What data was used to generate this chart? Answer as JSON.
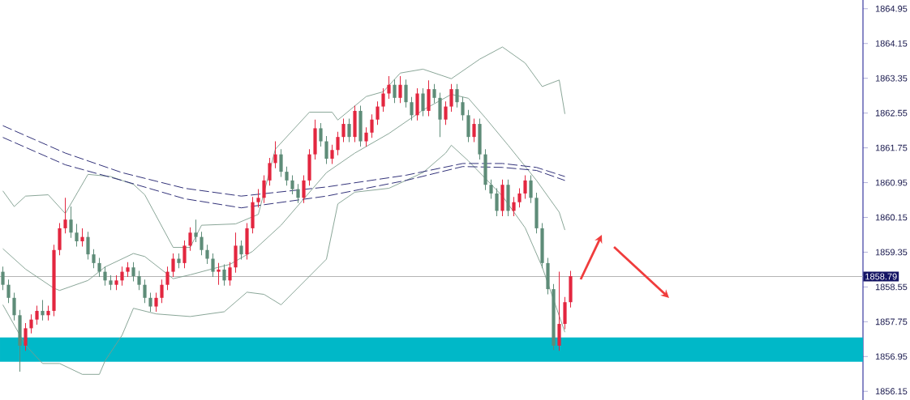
{
  "chart_data": {
    "type": "candlestick",
    "categories": [
      null,
      null,
      null,
      null,
      null,
      null,
      null,
      null,
      null,
      null,
      null,
      null,
      null,
      null,
      null,
      null,
      null,
      null,
      null,
      null,
      null,
      null,
      null,
      null,
      null,
      null,
      null,
      null,
      null,
      null,
      null,
      null,
      null,
      null,
      null,
      null,
      null,
      null,
      null,
      null,
      null,
      null,
      null,
      null,
      null,
      null,
      null,
      null,
      null,
      null,
      null,
      null,
      null,
      null,
      null,
      null,
      null,
      null,
      null,
      null,
      null,
      null,
      null,
      null,
      null,
      null,
      null,
      null,
      null,
      null,
      null,
      null,
      null,
      null,
      null,
      null,
      null,
      null,
      null,
      null,
      null,
      null,
      null,
      null,
      null,
      null,
      null,
      null,
      null,
      null,
      null,
      null,
      null,
      null,
      null,
      null,
      null,
      null,
      null,
      null,
      null,
      null,
      null,
      null,
      null,
      null,
      null,
      null,
      null,
      null,
      null,
      null,
      null,
      null,
      null,
      null,
      null,
      null,
      null,
      null,
      null,
      null,
      null,
      null,
      null,
      null,
      null,
      null,
      null,
      null,
      null,
      null,
      null,
      null,
      null,
      null,
      null,
      null,
      null,
      null,
      null,
      null,
      null,
      null,
      null,
      null,
      null,
      null,
      null,
      null,
      null,
      null
    ],
    "ohlc": [
      [
        1858.9,
        1859.02,
        1858.48,
        1858.6
      ],
      [
        1858.6,
        1858.72,
        1858.18,
        1858.3
      ],
      [
        1858.3,
        1858.42,
        1857.78,
        1857.9
      ],
      [
        1857.9,
        1858.02,
        1856.6,
        1857.2
      ],
      [
        1857.2,
        1857.72,
        1857.08,
        1857.6
      ],
      [
        1857.6,
        1857.92,
        1857.48,
        1857.8
      ],
      [
        1857.8,
        1858.12,
        1857.68,
        1858.0
      ],
      [
        1858.0,
        1858.25,
        1857.78,
        1857.9
      ],
      [
        1857.9,
        1858.12,
        1857.78,
        1858.0
      ],
      [
        1858.0,
        1859.52,
        1857.88,
        1859.4
      ],
      [
        1859.4,
        1860.02,
        1859.28,
        1859.9
      ],
      [
        1859.9,
        1860.6,
        1859.78,
        1860.1
      ],
      [
        1860.1,
        1860.4,
        1859.68,
        1859.8
      ],
      [
        1859.8,
        1860.0,
        1859.48,
        1859.6
      ],
      [
        1859.6,
        1859.9,
        1859.48,
        1859.7
      ],
      [
        1859.7,
        1859.82,
        1859.18,
        1859.3
      ],
      [
        1859.3,
        1859.42,
        1858.98,
        1859.1
      ],
      [
        1859.1,
        1859.22,
        1858.78,
        1858.9
      ],
      [
        1858.9,
        1859.02,
        1858.58,
        1858.7
      ],
      [
        1858.7,
        1858.82,
        1858.48,
        1858.6
      ],
      [
        1858.6,
        1858.82,
        1858.48,
        1858.7
      ],
      [
        1858.7,
        1859.02,
        1858.58,
        1858.9
      ],
      [
        1858.9,
        1859.12,
        1858.78,
        1859.0
      ],
      [
        1859.0,
        1859.12,
        1858.68,
        1858.8
      ],
      [
        1858.8,
        1858.92,
        1858.48,
        1858.6
      ],
      [
        1858.6,
        1858.72,
        1858.18,
        1858.3
      ],
      [
        1858.3,
        1858.42,
        1857.98,
        1858.1
      ],
      [
        1858.1,
        1858.42,
        1857.98,
        1858.3
      ],
      [
        1858.3,
        1858.72,
        1858.18,
        1858.6
      ],
      [
        1858.6,
        1859.02,
        1858.48,
        1858.9
      ],
      [
        1858.9,
        1859.32,
        1858.78,
        1859.2
      ],
      [
        1859.2,
        1859.32,
        1858.98,
        1859.1
      ],
      [
        1859.1,
        1859.62,
        1858.98,
        1859.5
      ],
      [
        1859.5,
        1859.92,
        1859.38,
        1859.8
      ],
      [
        1859.8,
        1860.1,
        1859.58,
        1859.7
      ],
      [
        1859.7,
        1859.82,
        1859.28,
        1859.4
      ],
      [
        1859.4,
        1859.52,
        1859.08,
        1859.2
      ],
      [
        1859.2,
        1859.32,
        1858.78,
        1858.9
      ],
      [
        1858.9,
        1859.1,
        1858.6,
        1858.95
      ],
      [
        1858.95,
        1859.07,
        1858.58,
        1858.7
      ],
      [
        1858.7,
        1859.12,
        1858.58,
        1859.0
      ],
      [
        1859.0,
        1859.8,
        1858.88,
        1859.5
      ],
      [
        1859.5,
        1859.62,
        1859.18,
        1859.3
      ],
      [
        1859.3,
        1860.02,
        1859.18,
        1859.9
      ],
      [
        1859.9,
        1860.62,
        1859.78,
        1860.5
      ],
      [
        1860.5,
        1860.8,
        1860.38,
        1860.6
      ],
      [
        1860.6,
        1861.12,
        1860.48,
        1861.0
      ],
      [
        1861.0,
        1861.52,
        1860.88,
        1861.4
      ],
      [
        1861.4,
        1861.9,
        1861.28,
        1861.6
      ],
      [
        1861.6,
        1861.72,
        1861.08,
        1861.2
      ],
      [
        1861.2,
        1861.32,
        1860.88,
        1861.0
      ],
      [
        1861.0,
        1861.12,
        1860.68,
        1860.8
      ],
      [
        1860.8,
        1860.92,
        1860.48,
        1860.6
      ],
      [
        1860.6,
        1861.12,
        1860.48,
        1861.0
      ],
      [
        1861.0,
        1861.72,
        1860.88,
        1861.6
      ],
      [
        1861.6,
        1862.4,
        1861.48,
        1862.2
      ],
      [
        1862.2,
        1862.32,
        1861.78,
        1861.9
      ],
      [
        1861.9,
        1862.02,
        1861.38,
        1861.5
      ],
      [
        1861.5,
        1861.82,
        1861.38,
        1861.7
      ],
      [
        1861.7,
        1862.12,
        1861.58,
        1862.0
      ],
      [
        1862.0,
        1862.42,
        1861.88,
        1862.3
      ],
      [
        1862.3,
        1862.42,
        1861.88,
        1862.0
      ],
      [
        1862.0,
        1862.72,
        1861.88,
        1862.6
      ],
      [
        1862.6,
        1862.72,
        1861.78,
        1861.9
      ],
      [
        1861.9,
        1862.22,
        1861.78,
        1862.1
      ],
      [
        1862.1,
        1862.52,
        1861.98,
        1862.4
      ],
      [
        1862.4,
        1862.82,
        1862.28,
        1862.7
      ],
      [
        1862.7,
        1863.12,
        1862.58,
        1863.0
      ],
      [
        1863.0,
        1863.4,
        1862.88,
        1863.2
      ],
      [
        1863.2,
        1863.32,
        1862.78,
        1862.9
      ],
      [
        1862.9,
        1863.4,
        1862.78,
        1863.2
      ],
      [
        1863.2,
        1863.32,
        1862.68,
        1862.8
      ],
      [
        1862.8,
        1862.92,
        1862.38,
        1862.5
      ],
      [
        1862.5,
        1863.12,
        1862.38,
        1863.0
      ],
      [
        1863.0,
        1863.12,
        1862.48,
        1862.6
      ],
      [
        1862.6,
        1863.3,
        1862.48,
        1863.1
      ],
      [
        1863.1,
        1863.22,
        1862.78,
        1862.9
      ],
      [
        1862.9,
        1863.02,
        1862.0,
        1862.4
      ],
      [
        1862.4,
        1862.82,
        1862.28,
        1862.7
      ],
      [
        1862.7,
        1863.22,
        1862.58,
        1863.1
      ],
      [
        1863.1,
        1863.22,
        1862.68,
        1862.8
      ],
      [
        1862.8,
        1862.92,
        1862.38,
        1862.5
      ],
      [
        1862.5,
        1862.62,
        1861.88,
        1862.0
      ],
      [
        1862.0,
        1862.42,
        1861.88,
        1862.3
      ],
      [
        1862.3,
        1862.42,
        1861.48,
        1861.6
      ],
      [
        1861.6,
        1861.72,
        1860.78,
        1860.9
      ],
      [
        1860.9,
        1861.02,
        1860.58,
        1860.7
      ],
      [
        1860.7,
        1860.82,
        1860.18,
        1860.3
      ],
      [
        1860.3,
        1861.02,
        1860.18,
        1860.9
      ],
      [
        1860.9,
        1861.02,
        1860.18,
        1860.3
      ],
      [
        1860.3,
        1860.62,
        1860.18,
        1860.5
      ],
      [
        1860.5,
        1860.82,
        1860.38,
        1860.7
      ],
      [
        1860.7,
        1861.12,
        1860.58,
        1861.0
      ],
      [
        1861.0,
        1861.12,
        1860.48,
        1860.6
      ],
      [
        1860.6,
        1860.72,
        1859.78,
        1859.9
      ],
      [
        1859.9,
        1860.02,
        1858.98,
        1859.1
      ],
      [
        1859.1,
        1859.22,
        1858.38,
        1858.5
      ],
      [
        1858.5,
        1858.62,
        1857.1,
        1857.2
      ],
      [
        1857.2,
        1858.9,
        1857.08,
        1857.7
      ],
      [
        1857.7,
        1858.32,
        1857.58,
        1858.2
      ],
      [
        1858.2,
        1858.92,
        1858.08,
        1858.8
      ],
      null,
      null,
      null,
      null,
      null,
      null,
      null,
      null,
      null,
      null,
      null,
      null,
      null,
      null,
      null,
      null,
      null,
      null,
      null,
      null,
      null,
      null,
      null,
      null,
      null,
      null,
      null,
      null,
      null,
      null,
      null,
      null,
      null,
      null,
      null,
      null,
      null,
      null,
      null,
      null,
      null,
      null,
      null,
      null,
      null,
      null,
      null,
      null,
      null,
      null,
      null
    ],
    "colors": [
      "#5e8c78",
      "#5e8c78",
      "#5e8c78",
      "#5e8c78",
      "#e3263f",
      "#e3263f",
      "#e3263f",
      "#5e8c78",
      "#e3263f",
      "#e3263f",
      "#e3263f",
      "#e3263f",
      "#5e8c78",
      "#5e8c78",
      "#e3263f",
      "#5e8c78",
      "#5e8c78",
      "#5e8c78",
      "#5e8c78",
      "#5e8c78",
      "#e3263f",
      "#e3263f",
      "#e3263f",
      "#5e8c78",
      "#5e8c78",
      "#5e8c78",
      "#5e8c78",
      "#e3263f",
      "#e3263f",
      "#e3263f",
      "#e3263f",
      "#5e8c78",
      "#e3263f",
      "#e3263f",
      "#5e8c78",
      "#5e8c78",
      "#5e8c78",
      "#5e8c78",
      "#e3263f",
      "#5e8c78",
      "#e3263f",
      "#e3263f",
      "#5e8c78",
      "#e3263f",
      "#e3263f",
      "#e3263f",
      "#e3263f",
      "#e3263f",
      "#e3263f",
      "#5e8c78",
      "#5e8c78",
      "#5e8c78",
      "#5e8c78",
      "#e3263f",
      "#e3263f",
      "#e3263f",
      "#5e8c78",
      "#5e8c78",
      "#e3263f",
      "#e3263f",
      "#e3263f",
      "#5e8c78",
      "#e3263f",
      "#5e8c78",
      "#e3263f",
      "#e3263f",
      "#e3263f",
      "#e3263f",
      "#e3263f",
      "#5e8c78",
      "#e3263f",
      "#5e8c78",
      "#5e8c78",
      "#e3263f",
      "#5e8c78",
      "#e3263f",
      "#5e8c78",
      "#5e8c78",
      "#e3263f",
      "#e3263f",
      "#5e8c78",
      "#5e8c78",
      "#5e8c78",
      "#e3263f",
      "#5e8c78",
      "#5e8c78",
      "#5e8c78",
      "#5e8c78",
      "#e3263f",
      "#5e8c78",
      "#e3263f",
      "#e3263f",
      "#e3263f",
      "#5e8c78",
      "#5e8c78",
      "#5e8c78",
      "#5e8c78",
      "#5e8c78",
      "#e3263f",
      "#e3263f",
      "#e3263f",
      null,
      null,
      null,
      null,
      null,
      null,
      null,
      null,
      null,
      null,
      null,
      null,
      null,
      null,
      null,
      null,
      null,
      null,
      null,
      null,
      null,
      null,
      null,
      null,
      null,
      null,
      null,
      null,
      null,
      null,
      null,
      null,
      null,
      null,
      null,
      null,
      null,
      null,
      null,
      null,
      null,
      null,
      null,
      null,
      null,
      null,
      null,
      null,
      null,
      null,
      null
    ],
    "series": [
      {
        "type": "line",
        "color": "#7d9c8c",
        "line_style": "solid",
        "values": [
          1860.76,
          null,
          1860.4,
          null,
          1860.64,
          null,
          null,
          null,
          1860.67,
          null,
          null,
          1860.24,
          null,
          null,
          null,
          1861.14,
          null,
          null,
          null,
          1861.09,
          null,
          null,
          null,
          1860.91,
          null,
          1860.67,
          null,
          null,
          null,
          null,
          1859.46,
          null,
          null,
          1859.46,
          null,
          1859.97,
          null,
          null,
          null,
          null,
          null,
          1860.0,
          null,
          null,
          null,
          1860.22,
          null,
          null,
          1861.72,
          null,
          null,
          null,
          null,
          null,
          1862.57,
          null,
          null,
          null,
          1862.57,
          1862.39,
          null,
          null,
          null,
          null,
          1862.93,
          null,
          null,
          1863.04,
          null,
          null,
          1863.47,
          null,
          null,
          null,
          1863.56,
          null,
          null,
          null,
          null,
          1863.34,
          null,
          null,
          null,
          null,
          1863.79,
          null,
          null,
          null,
          1864.07,
          null,
          null,
          null,
          1863.7,
          null,
          null,
          1863.16,
          null,
          null,
          1863.31,
          1862.53,
          null,
          null,
          null,
          null,
          null,
          null,
          null,
          null,
          null,
          null,
          null,
          null,
          null,
          null,
          null,
          null,
          null,
          null,
          null,
          null,
          null,
          null,
          null,
          null,
          null,
          null,
          null,
          null,
          null,
          null,
          null,
          null,
          null,
          null,
          null,
          null,
          null,
          null,
          null,
          null,
          null,
          null,
          null,
          null,
          null,
          null,
          null,
          null,
          null,
          null,
          null,
          null
        ]
      },
      {
        "type": "line",
        "color": "#7d9c8c",
        "line_style": "solid",
        "values": [
          1859.43,
          null,
          null,
          null,
          1858.96,
          null,
          null,
          null,
          null,
          1858.52,
          1858.47,
          null,
          null,
          null,
          null,
          1858.7,
          null,
          null,
          1859.01,
          null,
          null,
          null,
          null,
          1859.32,
          null,
          1859.25,
          null,
          null,
          null,
          null,
          1858.74,
          null,
          null,
          1858.83,
          null,
          null,
          null,
          1858.97,
          null,
          null,
          1859.07,
          null,
          null,
          null,
          1859.37,
          null,
          null,
          null,
          null,
          1859.97,
          null,
          null,
          null,
          null,
          null,
          null,
          null,
          1861.18,
          null,
          null,
          null,
          null,
          1861.63,
          null,
          null,
          null,
          null,
          null,
          1862.08,
          null,
          null,
          null,
          null,
          null,
          1862.62,
          null,
          null,
          null,
          null,
          1862.98,
          null,
          null,
          1862.89,
          null,
          null,
          1862.44,
          null,
          null,
          null,
          1861.81,
          null,
          null,
          null,
          null,
          1861.0,
          null,
          null,
          null,
          1860.27,
          1859.86,
          null,
          null,
          null,
          null,
          null,
          null,
          null,
          null,
          null,
          null,
          null,
          null,
          null,
          null,
          null,
          null,
          null,
          null,
          null,
          null,
          null,
          null,
          null,
          null,
          null,
          null,
          null,
          null,
          null,
          null,
          null,
          null,
          null,
          null,
          null,
          null,
          null,
          null,
          null,
          null,
          null,
          null,
          null,
          null,
          null,
          null,
          null,
          null,
          null,
          null,
          null,
          null
        ]
      },
      {
        "type": "line",
        "color": "#7d9c8c",
        "line_style": "solid",
        "values": [
          1858.14,
          null,
          null,
          null,
          1857.21,
          null,
          null,
          1856.79,
          null,
          null,
          1856.79,
          null,
          null,
          null,
          1856.54,
          null,
          null,
          1856.54,
          1856.85,
          null,
          null,
          1857.44,
          null,
          1858.06,
          null,
          null,
          null,
          1857.93,
          null,
          null,
          null,
          null,
          null,
          1857.87,
          null,
          null,
          null,
          null,
          null,
          1857.98,
          null,
          null,
          null,
          1858.43,
          null,
          null,
          1858.38,
          null,
          null,
          1858.14,
          null,
          null,
          null,
          null,
          null,
          null,
          null,
          1859.19,
          null,
          1860.46,
          null,
          null,
          1860.73,
          null,
          null,
          null,
          null,
          null,
          1860.82,
          null,
          null,
          null,
          null,
          null,
          1861.18,
          null,
          null,
          null,
          1861.63,
          1861.81,
          null,
          null,
          1861.45,
          null,
          null,
          null,
          null,
          null,
          1860.64,
          null,
          null,
          null,
          1859.91,
          null,
          null,
          1859.01,
          null,
          null,
          null,
          1857.51,
          null,
          null,
          null,
          null,
          null,
          null,
          null,
          null,
          null,
          null,
          null,
          null,
          null,
          null,
          null,
          null,
          null,
          null,
          null,
          null,
          null,
          null,
          null,
          null,
          null,
          null,
          null,
          null,
          null,
          null,
          null,
          null,
          null,
          null,
          null,
          null,
          null,
          null,
          null,
          null,
          null,
          null,
          null,
          null,
          null,
          null,
          null,
          null,
          null,
          null,
          null,
          null
        ]
      },
      {
        "type": "line",
        "color": "#1c1c6b",
        "line_style": "dashed",
        "values": [
          1862.26,
          null,
          null,
          null,
          null,
          null,
          null,
          null,
          null,
          null,
          null,
          1861.63,
          null,
          null,
          null,
          null,
          null,
          null,
          null,
          null,
          null,
          1861.18,
          null,
          null,
          null,
          null,
          null,
          null,
          null,
          null,
          null,
          null,
          1860.82,
          null,
          null,
          null,
          null,
          null,
          null,
          null,
          null,
          null,
          1860.64,
          null,
          null,
          null,
          null,
          null,
          null,
          null,
          null,
          null,
          null,
          null,
          null,
          null,
          null,
          1860.85,
          null,
          null,
          null,
          null,
          null,
          null,
          null,
          null,
          null,
          null,
          null,
          null,
          null,
          1861.12,
          null,
          null,
          null,
          null,
          null,
          null,
          null,
          null,
          null,
          1861.39,
          null,
          null,
          null,
          null,
          null,
          null,
          1861.39,
          null,
          null,
          null,
          null,
          null,
          1861.3,
          null,
          null,
          null,
          null,
          1861.09,
          null,
          null,
          null,
          null,
          null,
          null,
          null,
          null,
          null,
          null,
          null,
          null,
          null,
          null,
          null,
          null,
          null,
          null,
          null,
          null,
          null,
          null,
          null,
          null,
          null,
          null,
          null,
          null,
          null,
          null,
          null,
          null,
          null,
          null,
          null,
          null,
          null,
          null,
          null,
          null,
          null,
          null,
          null,
          null,
          null,
          null,
          null,
          null,
          null,
          null,
          null,
          null
        ]
      },
      {
        "type": "line",
        "color": "#1c1c6b",
        "line_style": "dashed",
        "values": [
          1861.99,
          null,
          null,
          null,
          null,
          null,
          null,
          null,
          null,
          null,
          null,
          1861.36,
          null,
          null,
          null,
          null,
          null,
          null,
          null,
          null,
          null,
          1861.0,
          null,
          null,
          null,
          null,
          null,
          null,
          null,
          null,
          null,
          null,
          1860.58,
          null,
          null,
          null,
          null,
          null,
          null,
          null,
          null,
          null,
          1860.37,
          null,
          null,
          null,
          null,
          null,
          null,
          null,
          null,
          null,
          null,
          null,
          null,
          null,
          null,
          1860.64,
          null,
          null,
          null,
          null,
          null,
          null,
          null,
          null,
          null,
          null,
          null,
          null,
          null,
          1861.0,
          null,
          null,
          null,
          null,
          null,
          null,
          null,
          null,
          null,
          1861.32,
          null,
          null,
          null,
          null,
          null,
          null,
          1861.3,
          null,
          null,
          null,
          null,
          null,
          1861.23,
          null,
          null,
          null,
          null,
          1861.0,
          null,
          null,
          null,
          null,
          null,
          null,
          null,
          null,
          null,
          null,
          null,
          null,
          null,
          null,
          null,
          null,
          null,
          null,
          null,
          null,
          null,
          null,
          null,
          null,
          null,
          null,
          null,
          null,
          null,
          null,
          null,
          null,
          null,
          null,
          null,
          null,
          null,
          null,
          null,
          null,
          null,
          null,
          null,
          null,
          null,
          null,
          null,
          null,
          null,
          null,
          null,
          null
        ]
      }
    ],
    "ylim": [
      1855.95,
      1865.15
    ],
    "yticks": [
      1856.15,
      1856.95,
      1857.75,
      1858.55,
      1859.35,
      1860.15,
      1860.95,
      1861.75,
      1862.55,
      1863.35,
      1864.15,
      1864.95
    ],
    "ref_lines": [
      {
        "axis": "y",
        "value": 1858.79,
        "label": "1858.79",
        "color": "#b4b4b4"
      }
    ],
    "bands": [
      {
        "axis": "y",
        "from": 1856.83,
        "to": 1857.39,
        "color": "#00b8c8"
      }
    ],
    "tick_labels": "y"
  }
}
